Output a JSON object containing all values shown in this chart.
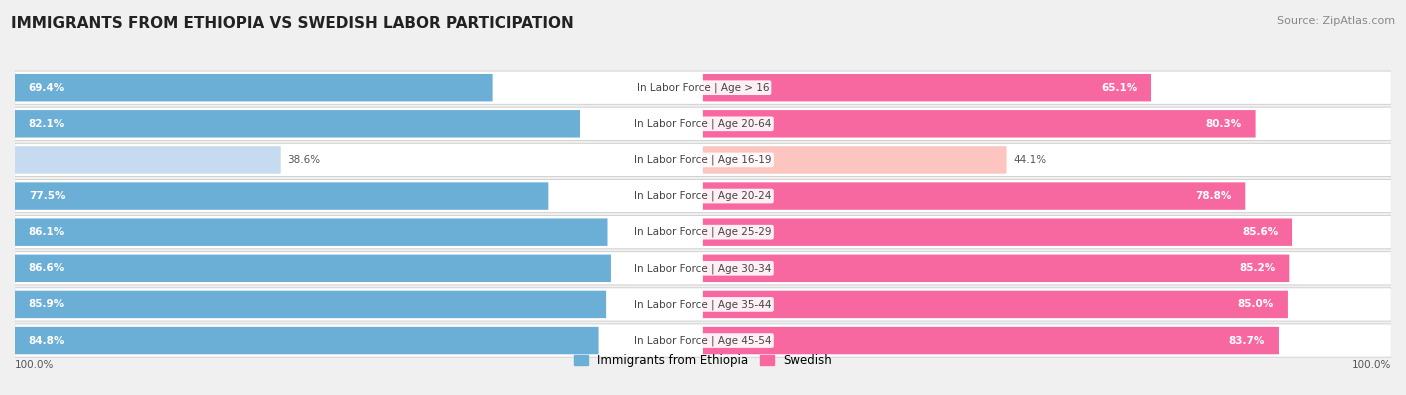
{
  "title": "IMMIGRANTS FROM ETHIOPIA VS SWEDISH LABOR PARTICIPATION",
  "source": "Source: ZipAtlas.com",
  "categories": [
    "In Labor Force | Age > 16",
    "In Labor Force | Age 20-64",
    "In Labor Force | Age 16-19",
    "In Labor Force | Age 20-24",
    "In Labor Force | Age 25-29",
    "In Labor Force | Age 30-34",
    "In Labor Force | Age 35-44",
    "In Labor Force | Age 45-54"
  ],
  "ethiopia_values": [
    69.4,
    82.1,
    38.6,
    77.5,
    86.1,
    86.6,
    85.9,
    84.8
  ],
  "swedish_values": [
    65.1,
    80.3,
    44.1,
    78.8,
    85.6,
    85.2,
    85.0,
    83.7
  ],
  "ethiopia_color_full": "#6baed6",
  "ethiopia_color_light": "#c6dbef",
  "swedish_color_full": "#f768a1",
  "swedish_color_light": "#fcc5c0",
  "background_color": "#f0f0f0",
  "row_bg_color": "#ffffff",
  "title_fontsize": 11,
  "source_fontsize": 8,
  "label_fontsize": 7.5,
  "value_fontsize": 7.5,
  "legend_fontsize": 8.5,
  "max_value": 100.0,
  "figsize": [
    14.06,
    3.95
  ],
  "dpi": 100
}
